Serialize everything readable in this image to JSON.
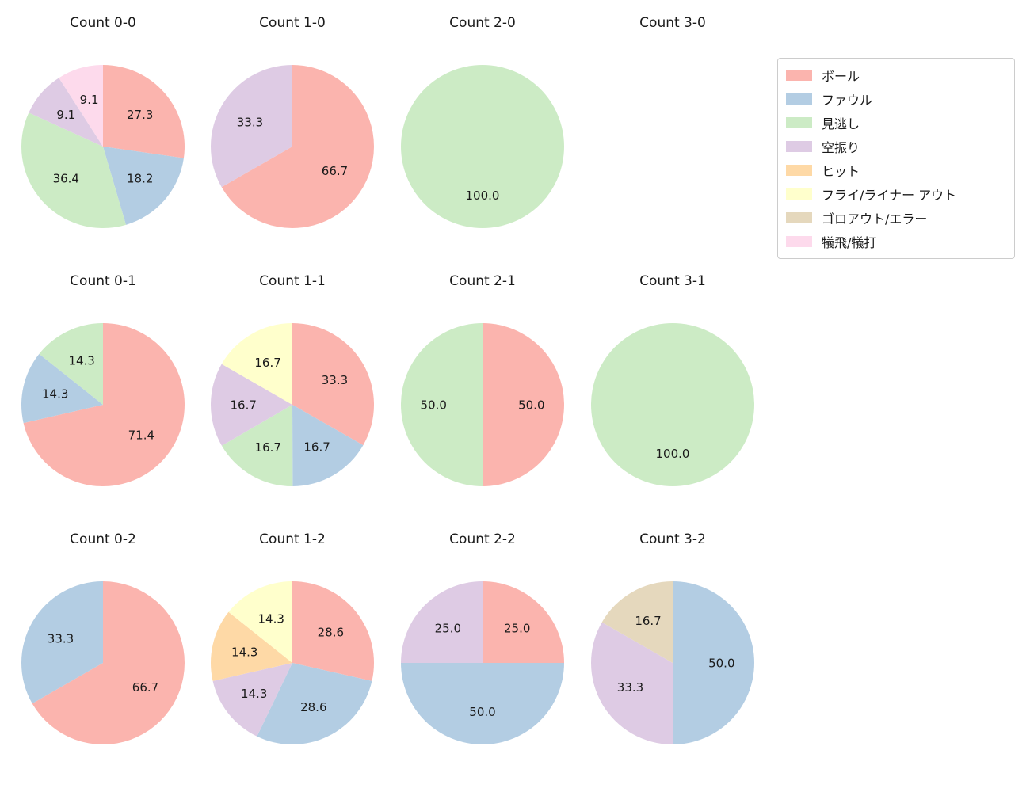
{
  "figure": {
    "background": "#ffffff"
  },
  "legend": {
    "items": [
      {
        "label": "ボール",
        "color": "#fbb4ae"
      },
      {
        "label": "ファウル",
        "color": "#b3cde3"
      },
      {
        "label": "見逃し",
        "color": "#ccebc5"
      },
      {
        "label": "空振り",
        "color": "#decbe4"
      },
      {
        "label": "ヒット",
        "color": "#fed9a6"
      },
      {
        "label": "フライ/ライナー アウト",
        "color": "#ffffcc"
      },
      {
        "label": "ゴロアウト/エラー",
        "color": "#e5d8bd"
      },
      {
        "label": "犠飛/犠打",
        "color": "#fddaec"
      }
    ]
  },
  "chart_data": [
    {
      "type": "pie",
      "title": "Count 0-0",
      "start_angle": "12-oclock",
      "direction": "clockwise",
      "slices": [
        {
          "label": "ボール",
          "value": 27.3,
          "display": "27.3",
          "color": "#fbb4ae"
        },
        {
          "label": "ファウル",
          "value": 18.2,
          "display": "18.2",
          "color": "#b3cde3"
        },
        {
          "label": "見逃し",
          "value": 36.4,
          "display": "36.4",
          "color": "#ccebc5"
        },
        {
          "label": "空振り",
          "value": 9.1,
          "display": "9.1",
          "color": "#decbe4"
        },
        {
          "label": "犠飛/犠打",
          "value": 9.1,
          "display": "9.1",
          "color": "#fddaec"
        }
      ]
    },
    {
      "type": "pie",
      "title": "Count 1-0",
      "start_angle": "12-oclock",
      "direction": "clockwise",
      "slices": [
        {
          "label": "ボール",
          "value": 66.7,
          "display": "66.7",
          "color": "#fbb4ae"
        },
        {
          "label": "空振り",
          "value": 33.3,
          "display": "33.3",
          "color": "#decbe4"
        }
      ]
    },
    {
      "type": "pie",
      "title": "Count 2-0",
      "start_angle": "12-oclock",
      "direction": "clockwise",
      "slices": [
        {
          "label": "見逃し",
          "value": 100.0,
          "display": "100.0",
          "color": "#ccebc5"
        }
      ]
    },
    {
      "type": "pie",
      "title": "Count 3-0",
      "start_angle": "12-oclock",
      "direction": "clockwise",
      "slices": []
    },
    {
      "type": "pie",
      "title": "Count 0-1",
      "start_angle": "12-oclock",
      "direction": "clockwise",
      "slices": [
        {
          "label": "ボール",
          "value": 71.4,
          "display": "71.4",
          "color": "#fbb4ae"
        },
        {
          "label": "ファウル",
          "value": 14.3,
          "display": "14.3",
          "color": "#b3cde3"
        },
        {
          "label": "見逃し",
          "value": 14.3,
          "display": "14.3",
          "color": "#ccebc5"
        }
      ]
    },
    {
      "type": "pie",
      "title": "Count 1-1",
      "start_angle": "12-oclock",
      "direction": "clockwise",
      "slices": [
        {
          "label": "ボール",
          "value": 33.3,
          "display": "33.3",
          "color": "#fbb4ae"
        },
        {
          "label": "ファウル",
          "value": 16.7,
          "display": "16.7",
          "color": "#b3cde3"
        },
        {
          "label": "見逃し",
          "value": 16.7,
          "display": "16.7",
          "color": "#ccebc5"
        },
        {
          "label": "空振り",
          "value": 16.7,
          "display": "16.7",
          "color": "#decbe4"
        },
        {
          "label": "フライ/ライナー アウト",
          "value": 16.7,
          "display": "16.7",
          "color": "#ffffcc"
        }
      ]
    },
    {
      "type": "pie",
      "title": "Count 2-1",
      "start_angle": "12-oclock",
      "direction": "clockwise",
      "slices": [
        {
          "label": "ボール",
          "value": 50.0,
          "display": "50.0",
          "color": "#fbb4ae"
        },
        {
          "label": "見逃し",
          "value": 50.0,
          "display": "50.0",
          "color": "#ccebc5"
        }
      ]
    },
    {
      "type": "pie",
      "title": "Count 3-1",
      "start_angle": "12-oclock",
      "direction": "clockwise",
      "slices": [
        {
          "label": "見逃し",
          "value": 100.0,
          "display": "100.0",
          "color": "#ccebc5"
        }
      ]
    },
    {
      "type": "pie",
      "title": "Count 0-2",
      "start_angle": "12-oclock",
      "direction": "clockwise",
      "slices": [
        {
          "label": "ボール",
          "value": 66.7,
          "display": "66.7",
          "color": "#fbb4ae"
        },
        {
          "label": "ファウル",
          "value": 33.3,
          "display": "33.3",
          "color": "#b3cde3"
        }
      ]
    },
    {
      "type": "pie",
      "title": "Count 1-2",
      "start_angle": "12-oclock",
      "direction": "clockwise",
      "slices": [
        {
          "label": "ボール",
          "value": 28.6,
          "display": "28.6",
          "color": "#fbb4ae"
        },
        {
          "label": "ファウル",
          "value": 28.6,
          "display": "28.6",
          "color": "#b3cde3"
        },
        {
          "label": "空振り",
          "value": 14.3,
          "display": "14.3",
          "color": "#decbe4"
        },
        {
          "label": "ヒット",
          "value": 14.3,
          "display": "14.3",
          "color": "#fed9a6"
        },
        {
          "label": "フライ/ライナー アウト",
          "value": 14.3,
          "display": "14.3",
          "color": "#ffffcc"
        }
      ]
    },
    {
      "type": "pie",
      "title": "Count 2-2",
      "start_angle": "12-oclock",
      "direction": "clockwise",
      "slices": [
        {
          "label": "ボール",
          "value": 25.0,
          "display": "25.0",
          "color": "#fbb4ae"
        },
        {
          "label": "ファウル",
          "value": 50.0,
          "display": "50.0",
          "color": "#b3cde3"
        },
        {
          "label": "空振り",
          "value": 25.0,
          "display": "25.0",
          "color": "#decbe4"
        }
      ]
    },
    {
      "type": "pie",
      "title": "Count 3-2",
      "start_angle": "12-oclock",
      "direction": "clockwise",
      "slices": [
        {
          "label": "ファウル",
          "value": 50.0,
          "display": "50.0",
          "color": "#b3cde3"
        },
        {
          "label": "空振り",
          "value": 33.3,
          "display": "33.3",
          "color": "#decbe4"
        },
        {
          "label": "ゴロアウト/エラー",
          "value": 16.7,
          "display": "16.7",
          "color": "#e5d8bd"
        }
      ]
    }
  ]
}
